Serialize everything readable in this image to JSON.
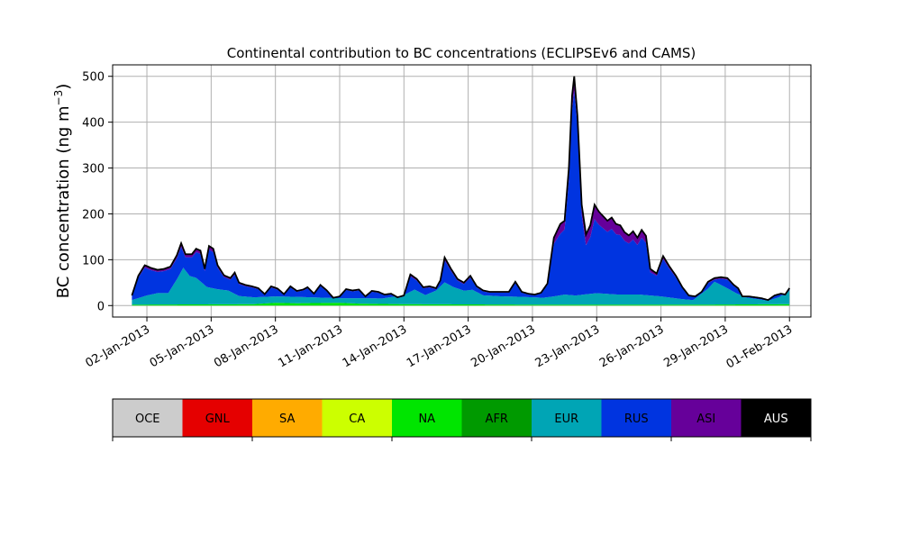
{
  "chart_data": {
    "type": "area",
    "title": "Continental contribution to BC concentrations (ECLIPSEv6 and CAMS)",
    "xlabel": "",
    "ylabel_main": "BC concentration (ng m",
    "ylabel_sup": "−3",
    "ylabel_close": ")",
    "x_start_day": 1.3,
    "x_end_day": 32.0,
    "xlim_days": [
      0.4,
      33.0
    ],
    "ylim": [
      -25,
      525
    ],
    "yticks": [
      0,
      100,
      200,
      300,
      400,
      500
    ],
    "xticks": [
      {
        "day": 2,
        "label": "02-Jan-2013"
      },
      {
        "day": 5,
        "label": "05-Jan-2013"
      },
      {
        "day": 8,
        "label": "08-Jan-2013"
      },
      {
        "day": 11,
        "label": "11-Jan-2013"
      },
      {
        "day": 14,
        "label": "14-Jan-2013"
      },
      {
        "day": 17,
        "label": "17-Jan-2013"
      },
      {
        "day": 20,
        "label": "20-Jan-2013"
      },
      {
        "day": 23,
        "label": "23-Jan-2013"
      },
      {
        "day": 26,
        "label": "26-Jan-2013"
      },
      {
        "day": 29,
        "label": "29-Jan-2013"
      },
      {
        "day": 32,
        "label": "01-Feb-2013"
      }
    ],
    "grid": true,
    "series_order": [
      "OCE",
      "GNL",
      "SA",
      "CA",
      "NA",
      "AFR",
      "EUR",
      "RUS",
      "ASI",
      "AUS"
    ],
    "total": [
      [
        1.3,
        22
      ],
      [
        1.6,
        65
      ],
      [
        1.9,
        88
      ],
      [
        2.2,
        82
      ],
      [
        2.5,
        78
      ],
      [
        2.8,
        80
      ],
      [
        3.1,
        85
      ],
      [
        3.4,
        110
      ],
      [
        3.6,
        136
      ],
      [
        3.8,
        112
      ],
      [
        4.1,
        112
      ],
      [
        4.3,
        124
      ],
      [
        4.5,
        120
      ],
      [
        4.7,
        80
      ],
      [
        4.9,
        130
      ],
      [
        5.1,
        124
      ],
      [
        5.3,
        88
      ],
      [
        5.6,
        66
      ],
      [
        5.9,
        60
      ],
      [
        6.1,
        72
      ],
      [
        6.3,
        50
      ],
      [
        6.6,
        45
      ],
      [
        6.9,
        42
      ],
      [
        7.2,
        38
      ],
      [
        7.5,
        25
      ],
      [
        7.8,
        42
      ],
      [
        8.1,
        37
      ],
      [
        8.4,
        25
      ],
      [
        8.7,
        42
      ],
      [
        9.0,
        32
      ],
      [
        9.3,
        35
      ],
      [
        9.5,
        40
      ],
      [
        9.8,
        26
      ],
      [
        10.1,
        45
      ],
      [
        10.4,
        33
      ],
      [
        10.7,
        17
      ],
      [
        11.0,
        20
      ],
      [
        11.3,
        36
      ],
      [
        11.6,
        33
      ],
      [
        11.9,
        35
      ],
      [
        12.2,
        20
      ],
      [
        12.5,
        32
      ],
      [
        12.8,
        30
      ],
      [
        13.1,
        24
      ],
      [
        13.4,
        26
      ],
      [
        13.7,
        18
      ],
      [
        14.0,
        22
      ],
      [
        14.3,
        68
      ],
      [
        14.6,
        58
      ],
      [
        14.9,
        40
      ],
      [
        15.2,
        42
      ],
      [
        15.5,
        38
      ],
      [
        15.7,
        55
      ],
      [
        15.9,
        105
      ],
      [
        16.2,
        80
      ],
      [
        16.5,
        58
      ],
      [
        16.8,
        50
      ],
      [
        17.1,
        65
      ],
      [
        17.4,
        42
      ],
      [
        17.7,
        33
      ],
      [
        18.0,
        30
      ],
      [
        18.3,
        30
      ],
      [
        18.6,
        30
      ],
      [
        18.9,
        30
      ],
      [
        19.2,
        52
      ],
      [
        19.5,
        30
      ],
      [
        19.8,
        26
      ],
      [
        20.1,
        24
      ],
      [
        20.4,
        28
      ],
      [
        20.7,
        48
      ],
      [
        21.0,
        148
      ],
      [
        21.3,
        178
      ],
      [
        21.5,
        185
      ],
      [
        21.7,
        300
      ],
      [
        21.85,
        458
      ],
      [
        21.95,
        500
      ],
      [
        22.1,
        415
      ],
      [
        22.3,
        220
      ],
      [
        22.5,
        155
      ],
      [
        22.7,
        175
      ],
      [
        22.9,
        220
      ],
      [
        23.1,
        205
      ],
      [
        23.3,
        195
      ],
      [
        23.5,
        185
      ],
      [
        23.7,
        192
      ],
      [
        23.9,
        178
      ],
      [
        24.1,
        175
      ],
      [
        24.3,
        160
      ],
      [
        24.5,
        153
      ],
      [
        24.7,
        162
      ],
      [
        24.9,
        148
      ],
      [
        25.1,
        165
      ],
      [
        25.3,
        152
      ],
      [
        25.5,
        80
      ],
      [
        25.8,
        70
      ],
      [
        26.1,
        108
      ],
      [
        26.4,
        85
      ],
      [
        26.7,
        65
      ],
      [
        27.0,
        40
      ],
      [
        27.3,
        22
      ],
      [
        27.6,
        20
      ],
      [
        27.9,
        30
      ],
      [
        28.2,
        52
      ],
      [
        28.5,
        60
      ],
      [
        28.8,
        62
      ],
      [
        29.1,
        60
      ],
      [
        29.4,
        45
      ],
      [
        29.6,
        38
      ],
      [
        29.8,
        20
      ],
      [
        30.1,
        20
      ],
      [
        30.4,
        18
      ],
      [
        30.7,
        16
      ],
      [
        31.0,
        12
      ],
      [
        31.3,
        22
      ],
      [
        31.6,
        26
      ],
      [
        31.8,
        24
      ],
      [
        32.0,
        38
      ]
    ],
    "asi_share": [
      [
        1.3,
        0.06
      ],
      [
        20.7,
        0.06
      ],
      [
        21.3,
        0.12
      ],
      [
        22.1,
        0.05
      ],
      [
        22.5,
        0.15
      ],
      [
        25.3,
        0.1
      ],
      [
        26.1,
        0.06
      ],
      [
        32.0,
        0.05
      ]
    ],
    "eur_base": [
      [
        1.3,
        10
      ],
      [
        2.0,
        20
      ],
      [
        2.5,
        25
      ],
      [
        3.0,
        25
      ],
      [
        3.4,
        55
      ],
      [
        3.7,
        80
      ],
      [
        4.0,
        62
      ],
      [
        4.3,
        58
      ],
      [
        4.8,
        38
      ],
      [
        5.3,
        33
      ],
      [
        5.8,
        30
      ],
      [
        6.3,
        18
      ],
      [
        7.0,
        15
      ],
      [
        8.0,
        14
      ],
      [
        9.0,
        14
      ],
      [
        10.0,
        12
      ],
      [
        11.0,
        10
      ],
      [
        12.0,
        12
      ],
      [
        13.0,
        12
      ],
      [
        14.0,
        20
      ],
      [
        14.5,
        32
      ],
      [
        15.0,
        20
      ],
      [
        15.5,
        30
      ],
      [
        15.9,
        48
      ],
      [
        16.3,
        38
      ],
      [
        16.8,
        30
      ],
      [
        17.2,
        32
      ],
      [
        17.7,
        20
      ],
      [
        18.5,
        18
      ],
      [
        19.5,
        17
      ],
      [
        20.5,
        15
      ],
      [
        21.0,
        18
      ],
      [
        21.5,
        22
      ],
      [
        22.0,
        20
      ],
      [
        23.0,
        25
      ],
      [
        24.0,
        22
      ],
      [
        25.0,
        22
      ],
      [
        25.5,
        20
      ],
      [
        26.0,
        18
      ],
      [
        27.0,
        12
      ],
      [
        27.5,
        10
      ],
      [
        28.2,
        35
      ],
      [
        28.5,
        50
      ],
      [
        29.0,
        38
      ],
      [
        29.5,
        25
      ],
      [
        30.0,
        15
      ],
      [
        31.0,
        8
      ],
      [
        31.5,
        15
      ],
      [
        32.0,
        30
      ]
    ],
    "na_base": [
      [
        1.3,
        2
      ],
      [
        7.0,
        3
      ],
      [
        8.0,
        6
      ],
      [
        9.0,
        5
      ],
      [
        11.0,
        6
      ],
      [
        12.0,
        4
      ],
      [
        14.0,
        3
      ],
      [
        20.0,
        2
      ],
      [
        25.0,
        2
      ],
      [
        28.0,
        2
      ],
      [
        32.0,
        3
      ]
    ],
    "colorbar": {
      "labels": [
        "OCE",
        "GNL",
        "SA",
        "CA",
        "NA",
        "AFR",
        "EUR",
        "RUS",
        "ASI",
        "AUS"
      ],
      "colors": [
        "#cccccc",
        "#e50000",
        "#ffab00",
        "#ccff00",
        "#00e500",
        "#009a00",
        "#00a5b5",
        "#0034e0",
        "#66009a",
        "#000000"
      ],
      "text_colors": [
        "#000000",
        "#000000",
        "#000000",
        "#000000",
        "#000000",
        "#000000",
        "#000000",
        "#000000",
        "#000000",
        "#ffffff"
      ]
    },
    "area_colors": {
      "NA": "#00e500",
      "EUR": "#00a5b5",
      "RUS": "#0034e0",
      "ASI": "#66009a",
      "AUS": "#000000"
    }
  }
}
